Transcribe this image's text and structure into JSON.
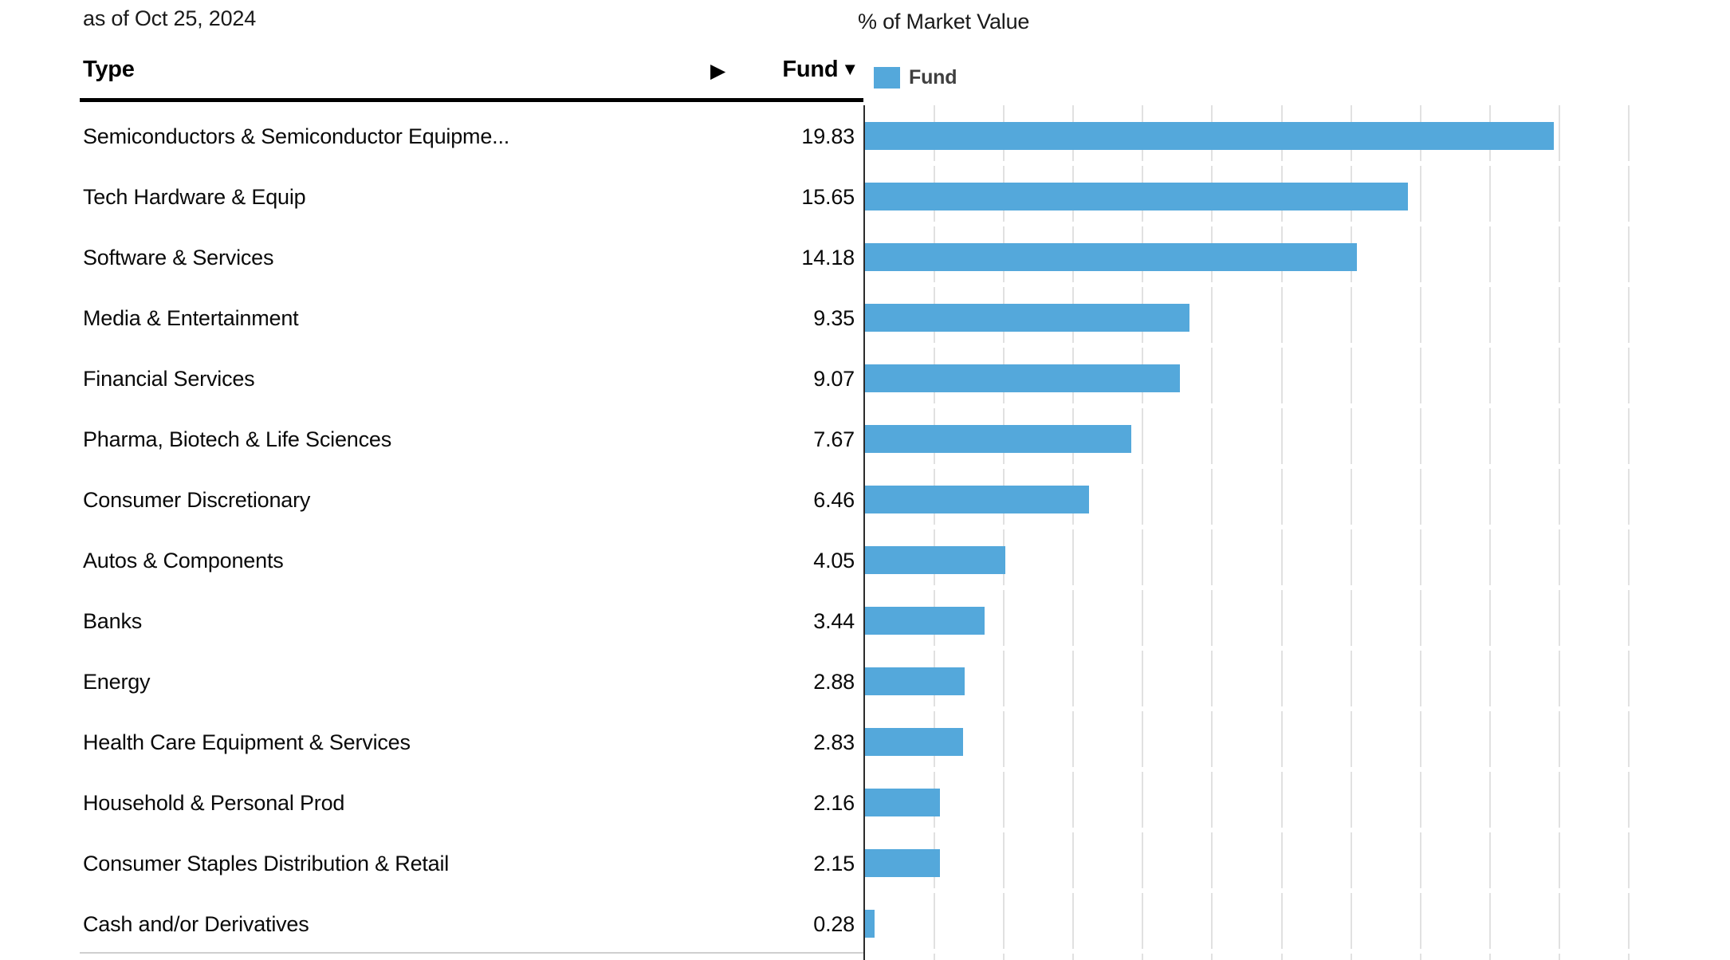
{
  "header": {
    "as_of": "as of Oct 25, 2024",
    "chart_title": "% of Market Value"
  },
  "table": {
    "type_column_header": "Type",
    "fund_column_header": "Fund",
    "sort_desc_icon": "▼",
    "expand_icon": "▶"
  },
  "legend": {
    "label": "Fund",
    "swatch_color": "#54A8DB"
  },
  "chart_data": {
    "type": "bar",
    "orientation": "horizontal",
    "title": "% of Market Value",
    "categories": [
      "Semiconductors & Semiconductor Equipme...",
      "Tech Hardware & Equip",
      "Software & Services",
      "Media & Entertainment",
      "Financial Services",
      "Pharma, Biotech & Life Sciences",
      "Consumer Discretionary",
      "Autos & Components",
      "Banks",
      "Energy",
      "Health Care Equipment & Services",
      "Household & Personal Prod",
      "Consumer Staples Distribution & Retail",
      "Cash and/or Derivatives"
    ],
    "series": [
      {
        "name": "Fund",
        "values": [
          19.83,
          15.65,
          14.18,
          9.35,
          9.07,
          7.67,
          6.46,
          4.05,
          3.44,
          2.88,
          2.83,
          2.16,
          2.15,
          0.28
        ]
      }
    ],
    "value_decimals": 2,
    "xlim": [
      0,
      22
    ],
    "gridline_step": 2,
    "grid": true,
    "legend_position": "top",
    "bar_color": "#54A8DB",
    "gridline_color": "#e1e1e1",
    "axis_line_color": "#2b2b2b"
  }
}
